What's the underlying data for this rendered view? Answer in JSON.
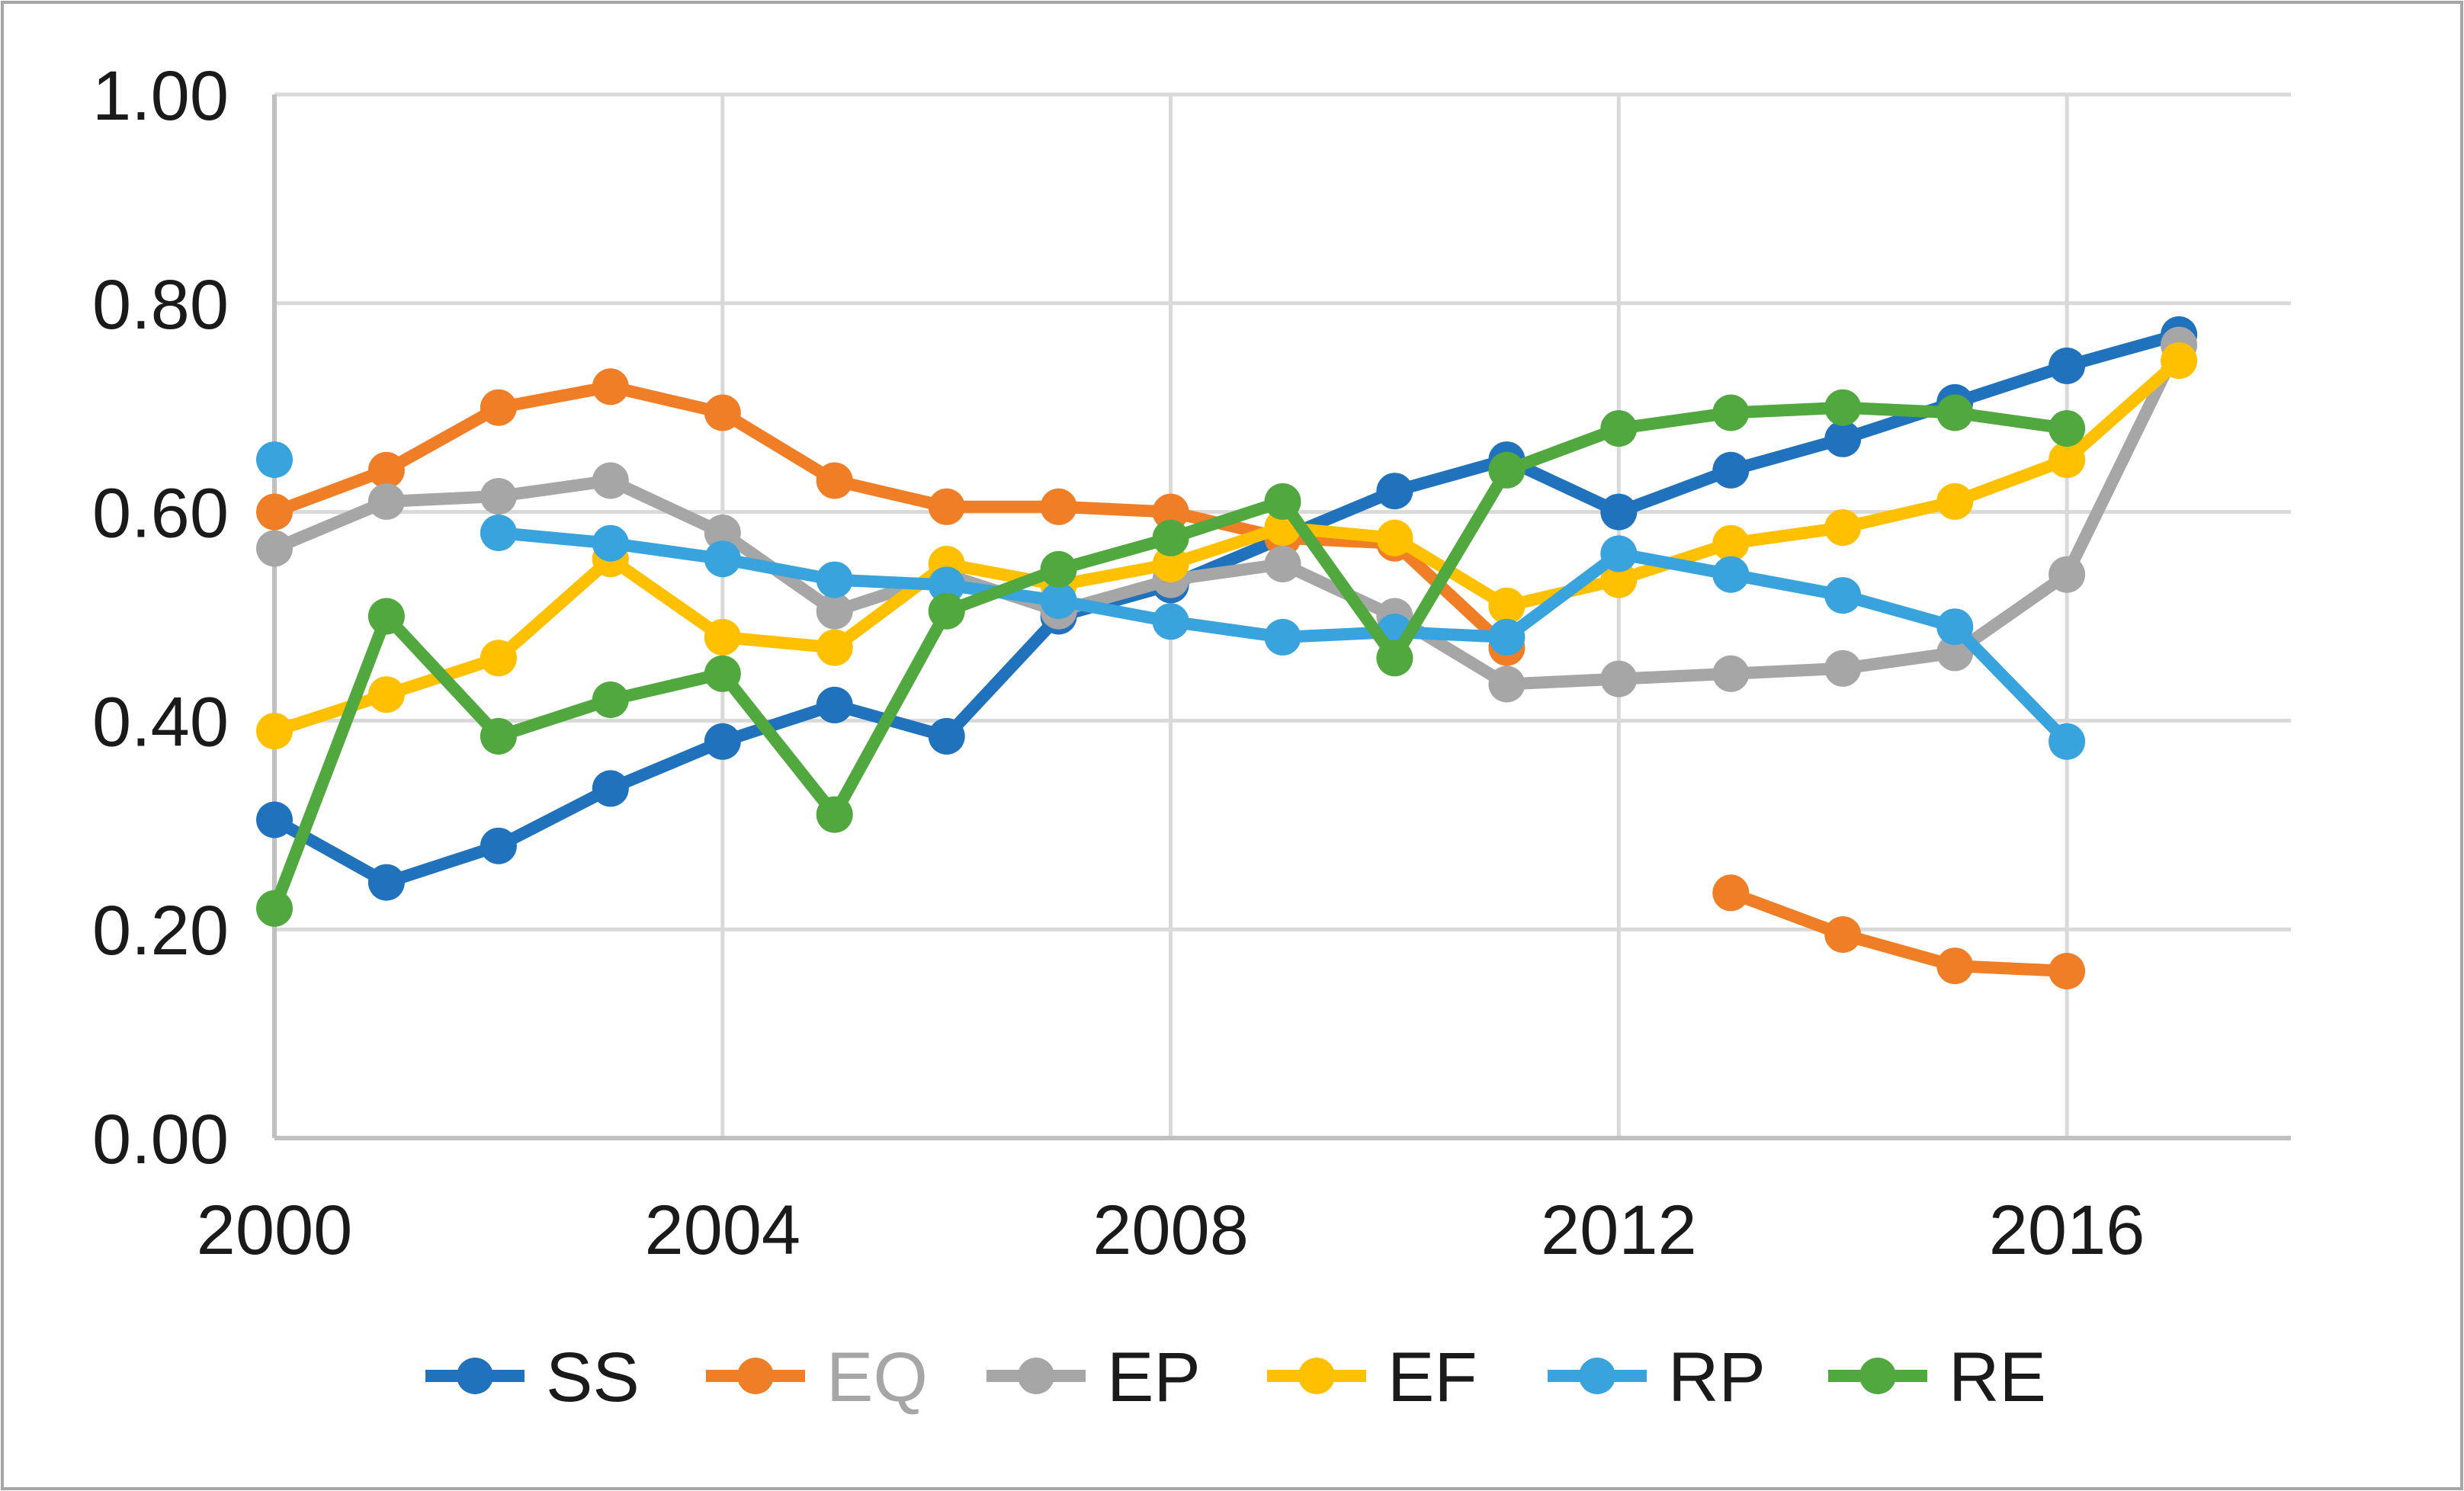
{
  "chart_data": {
    "type": "line",
    "title": "",
    "xlabel": "",
    "ylabel": "",
    "x": [
      2000,
      2001,
      2002,
      2003,
      2004,
      2005,
      2006,
      2007,
      2008,
      2009,
      2010,
      2011,
      2012,
      2013,
      2014,
      2015,
      2016,
      2017
    ],
    "xlim": [
      2000,
      2018
    ],
    "ylim": [
      0.0,
      1.0
    ],
    "x_ticks": [
      2000,
      2004,
      2008,
      2012,
      2016
    ],
    "x_tick_labels": [
      "2000",
      "2004",
      "2008",
      "2012",
      "2016"
    ],
    "y_ticks": [
      0.0,
      0.2,
      0.4,
      0.6,
      0.8,
      1.0
    ],
    "y_tick_labels": [
      "0.00",
      "0.20",
      "0.40",
      "0.60",
      "0.80",
      "1.00"
    ],
    "grid": true,
    "legend_position": "bottom",
    "series": [
      {
        "name": "SS",
        "color": "#2072BC",
        "label_color": "#1a1a1a",
        "values": [
          0.305,
          0.245,
          0.28,
          0.335,
          0.38,
          0.415,
          0.385,
          0.5,
          0.53,
          0.575,
          0.62,
          0.65,
          0.6,
          0.64,
          0.67,
          0.705,
          0.74,
          0.77
        ]
      },
      {
        "name": "EQ",
        "color": "#F07E27",
        "label_color": "#A6A6A6",
        "values": [
          0.6,
          0.64,
          0.7,
          0.72,
          0.695,
          0.63,
          0.605,
          0.605,
          0.6,
          0.575,
          0.57,
          0.47,
          null,
          0.235,
          0.195,
          0.165,
          0.16,
          null
        ]
      },
      {
        "name": "EP",
        "color": "#A6A6A6",
        "label_color": "#1a1a1a",
        "values": [
          0.565,
          0.61,
          0.615,
          0.63,
          0.58,
          0.505,
          0.54,
          0.505,
          0.535,
          0.55,
          0.5,
          0.435,
          0.44,
          0.445,
          0.45,
          0.465,
          0.54,
          0.76
        ]
      },
      {
        "name": "EF",
        "color": "#FFC000",
        "label_color": "#1a1a1a",
        "values": [
          0.39,
          0.425,
          0.46,
          0.555,
          0.48,
          0.47,
          0.55,
          0.53,
          0.55,
          0.585,
          0.575,
          0.51,
          0.535,
          0.57,
          0.585,
          0.61,
          0.65,
          0.745
        ]
      },
      {
        "name": "RP",
        "color": "#38A3DC",
        "label_color": "#1a1a1a",
        "values": [
          0.65,
          null,
          0.58,
          0.57,
          0.555,
          0.535,
          0.53,
          0.515,
          0.495,
          0.48,
          0.485,
          0.48,
          0.56,
          0.54,
          0.52,
          0.49,
          0.38,
          null
        ]
      },
      {
        "name": "RE",
        "color": "#50A83F",
        "label_color": "#1a1a1a",
        "values": [
          0.22,
          0.5,
          0.385,
          0.42,
          0.445,
          0.31,
          0.505,
          0.545,
          0.575,
          0.61,
          0.46,
          0.64,
          0.68,
          0.695,
          0.7,
          0.695,
          0.68,
          null
        ]
      }
    ]
  },
  "styles": {
    "background": "#FFFFFF",
    "border_color": "#A6A6A6",
    "grid_color": "#D9D9D9",
    "axis_color": "#C0C0C0",
    "tick_label_color": "#1a1a1a"
  }
}
